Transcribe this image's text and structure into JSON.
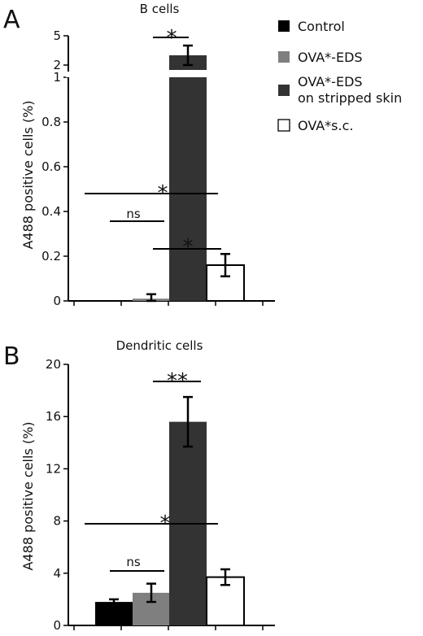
{
  "colors": {
    "Control": "#000000",
    "OVA*-EDS": "#7f7f7f",
    "OVA*-EDS on stripped skin": "#333333",
    "OVA*s.c.": "#ffffff"
  },
  "legend": {
    "items": [
      {
        "label": "Control",
        "swatch": "Control"
      },
      {
        "label": "OVA*-EDS",
        "swatch": "OVA*-EDS"
      },
      {
        "label": "OVA*-EDS",
        "label2": "on stripped skin",
        "swatch": "OVA*-EDS on stripped skin"
      },
      {
        "label": "OVA*s.c.",
        "swatch": "OVA*s.c."
      }
    ]
  },
  "panels": {
    "a": {
      "letter": "A",
      "title": "B cells",
      "ylabel": "A488 positive cells (%)"
    },
    "b": {
      "letter": "B",
      "title": "Dendritic cells",
      "ylabel": "A488 positive cells (%)"
    }
  },
  "chart_data": [
    {
      "type": "bar",
      "panel": "A",
      "title": "B cells",
      "ylabel": "A488 positive cells (%)",
      "categories": [
        "Control",
        "OVA*-EDS",
        "OVA*-EDS on stripped skin",
        "OVA*s.c."
      ],
      "values": [
        0,
        0.01,
        3.0,
        0.16
      ],
      "errors": [
        0,
        0.02,
        1.0,
        0.05
      ],
      "y_axis": "broken",
      "ylim_lower": [
        0,
        1
      ],
      "ylim_upper": [
        2,
        5
      ],
      "yticks_lower": [
        "0",
        "0.2",
        "0.4",
        "0.6",
        "0.8",
        "1"
      ],
      "yticks_upper": [
        "2",
        "5"
      ],
      "significance": [
        {
          "label": "*",
          "between": [
            "OVA*-EDS on stripped skin",
            "OVA*s.c."
          ]
        },
        {
          "label": "ns",
          "between": [
            "Control",
            "OVA*-EDS"
          ]
        },
        {
          "label": "*",
          "between": [
            "Control",
            "OVA*-EDS on stripped skin"
          ]
        },
        {
          "label": "*",
          "between": [
            "OVA*-EDS",
            "OVA*-EDS on stripped skin"
          ]
        }
      ]
    },
    {
      "type": "bar",
      "panel": "B",
      "title": "Dendritic cells",
      "ylabel": "A488 positive cells (%)",
      "categories": [
        "Control",
        "OVA*-EDS",
        "OVA*-EDS on stripped skin",
        "OVA*s.c."
      ],
      "values": [
        1.8,
        2.5,
        15.6,
        3.7
      ],
      "errors": [
        0.2,
        0.7,
        1.9,
        0.6
      ],
      "ylim": [
        0,
        20
      ],
      "yticks": [
        "0",
        "4",
        "8",
        "12",
        "16",
        "20"
      ],
      "significance": [
        {
          "label": "ns",
          "between": [
            "Control",
            "OVA*-EDS"
          ]
        },
        {
          "label": "*",
          "between": [
            "Control",
            "OVA*-EDS on stripped skin"
          ]
        },
        {
          "label": "**",
          "between": [
            "OVA*-EDS",
            "OVA*-EDS on stripped skin"
          ]
        }
      ]
    }
  ]
}
